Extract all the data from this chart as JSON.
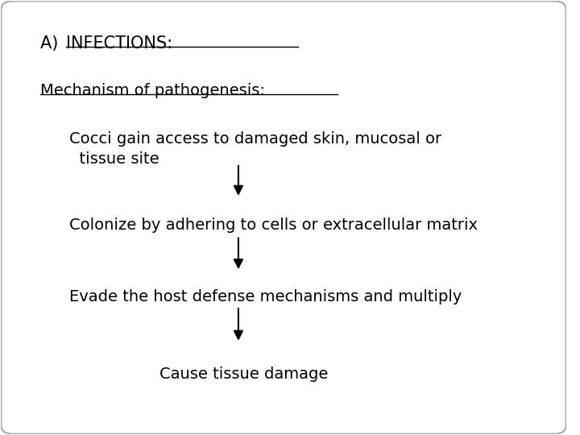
{
  "background_color": "#ffffff",
  "text_color": "#000000",
  "arrow_color": "#000000",
  "border_color": "#aaaaaa",
  "title_prefix": "A) ",
  "title_underlined": "INFECTIONS:",
  "subtitle": "Mechanism of pathogenesis:",
  "steps": [
    "Cocci gain access to damaged skin, mucosal or\n  tissue site",
    "Colonize by adhering to cells or extracellular matrix",
    "Evade the host defense mechanisms and multiply",
    "Cause tissue damage"
  ],
  "title_fontsize": 15,
  "subtitle_fontsize": 14,
  "step_fontsize": 14,
  "fig_width": 7.2,
  "fig_height": 5.4,
  "dpi": 100
}
